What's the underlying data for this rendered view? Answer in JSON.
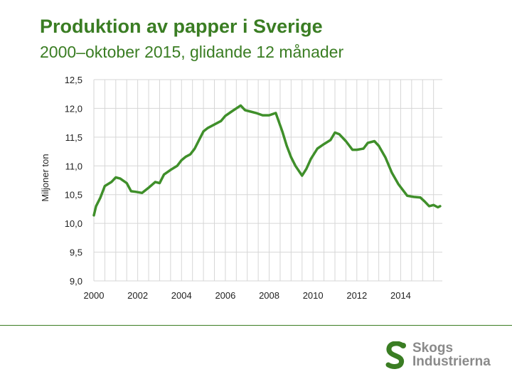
{
  "colors": {
    "accent": "#3a7d23",
    "line": "#3f8f2a",
    "grid": "#d6d6d6",
    "logo_text": "#8a8a8a"
  },
  "logo": {
    "icon": "skogsindustrierna-s-icon",
    "line1": "Skogs",
    "line2": "Industrierna"
  },
  "chart_data": {
    "type": "line",
    "title": "Produktion av papper i Sverige",
    "subtitle": "2000–oktober 2015, glidande 12 månader",
    "xlabel": "",
    "ylabel": "Miljoner ton",
    "xlim": [
      2000,
      2015.9
    ],
    "ylim": [
      9.0,
      12.5
    ],
    "yticks": [
      "12,5",
      "12,0",
      "11,5",
      "11,0",
      "10,5",
      "10,0",
      "9,5",
      "9,0"
    ],
    "xticks": [
      "2000",
      "2002",
      "2004",
      "2006",
      "2008",
      "2010",
      "2012",
      "2014"
    ],
    "grid": true,
    "series": [
      {
        "name": "",
        "x": [
          2000.0,
          2000.1,
          2000.3,
          2000.5,
          2000.8,
          2001.0,
          2001.2,
          2001.5,
          2001.7,
          2001.9,
          2002.2,
          2002.5,
          2002.8,
          2003.0,
          2003.2,
          2003.5,
          2003.8,
          2004.0,
          2004.2,
          2004.4,
          2004.6,
          2004.8,
          2005.0,
          2005.2,
          2005.5,
          2005.8,
          2006.0,
          2006.3,
          2006.5,
          2006.7,
          2006.9,
          2007.1,
          2007.4,
          2007.7,
          2008.0,
          2008.3,
          2008.6,
          2008.8,
          2009.0,
          2009.2,
          2009.5,
          2009.7,
          2009.9,
          2010.2,
          2010.5,
          2010.8,
          2011.0,
          2011.2,
          2011.5,
          2011.8,
          2012.0,
          2012.3,
          2012.5,
          2012.8,
          2013.0,
          2013.3,
          2013.6,
          2013.9,
          2014.1,
          2014.3,
          2014.6,
          2014.9,
          2015.1,
          2015.3,
          2015.5,
          2015.7,
          2015.8
        ],
        "values": [
          10.14,
          10.3,
          10.45,
          10.65,
          10.72,
          10.8,
          10.78,
          10.7,
          10.56,
          10.55,
          10.53,
          10.62,
          10.72,
          10.7,
          10.85,
          10.93,
          11.0,
          11.1,
          11.16,
          11.2,
          11.3,
          11.45,
          11.6,
          11.66,
          11.72,
          11.78,
          11.87,
          11.95,
          12.0,
          12.05,
          11.97,
          11.95,
          11.92,
          11.88,
          11.88,
          11.92,
          11.6,
          11.35,
          11.15,
          11.0,
          10.83,
          10.95,
          11.12,
          11.3,
          11.38,
          11.45,
          11.58,
          11.55,
          11.43,
          11.28,
          11.28,
          11.3,
          11.4,
          11.43,
          11.35,
          11.15,
          10.88,
          10.68,
          10.58,
          10.48,
          10.46,
          10.45,
          10.38,
          10.3,
          10.32,
          10.28,
          10.3
        ]
      }
    ]
  }
}
